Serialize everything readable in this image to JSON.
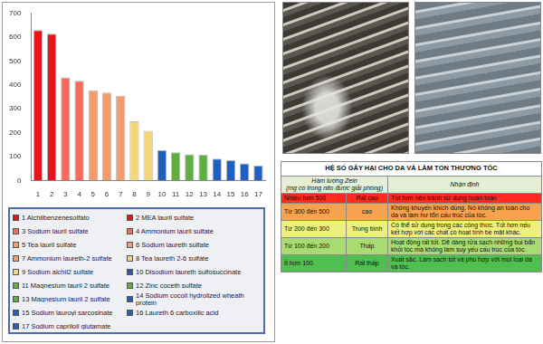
{
  "chart_data": {
    "type": "bar",
    "categories": [
      "1",
      "2",
      "3",
      "4",
      "5",
      "6",
      "7",
      "8",
      "9",
      "10",
      "11",
      "12",
      "13",
      "14",
      "15",
      "16",
      "17"
    ],
    "values": [
      630,
      615,
      432,
      418,
      378,
      368,
      355,
      248,
      208,
      128,
      118,
      110,
      108,
      92,
      85,
      72,
      63
    ],
    "colors": [
      "#e8141c",
      "#e8141c",
      "#f26b5b",
      "#f26b5b",
      "#f59a6a",
      "#f59a6a",
      "#f59a6a",
      "#f5d57a",
      "#f5d57a",
      "#1f5fbf",
      "#5fae3e",
      "#5fae3e",
      "#5fae3e",
      "#1f5fbf",
      "#1f5fbf",
      "#1f5fbf",
      "#1f5fbf"
    ],
    "category_names": [
      "1 Alchilbenzenesolfato",
      "2 MEA lauril sulfate",
      "3 Sodium lauril sulfate",
      "4 Ammonium lauril sulfate",
      "5 Tea lauril sulfate",
      "6 Sodium laureth sulfate",
      "7 Ammonium laureth-2 sulfate",
      "8 Tea laureth 2-6 sulfate",
      "9 Sodium alchil2 sulfate",
      "10 Disodium laureth sulfosuccinate",
      "11 Magnesium lauril 2 sulfate",
      "12 Zinc coceth sulfate",
      "13 Magnesium lauril 2 sulfate",
      "14 Sodium cocoil hydrolized wheath protein",
      "15 Sodium lauroyl sarcosinate",
      "16 Laureth 6 carboxilic acid",
      "17 Sodium capriloil glutamate"
    ],
    "ylim": [
      0,
      700
    ],
    "yticks": [
      0,
      100,
      200,
      300,
      400,
      500,
      600,
      700
    ],
    "grid": false
  },
  "table": {
    "title": "HỆ SỐ GÂY HẠI CHO DA VÀ LÀM TỔN THƯƠNG TÓC",
    "header": {
      "measure": [
        "Hàm lượng Zein",
        "(mg có trong nito được giải phóng)"
      ],
      "note": "Nhận định"
    },
    "rows": [
      [
        "Nhiều hơn 500",
        "Rất cao",
        "Tốt hơn nên tránh sử dụng hoàn toàn"
      ],
      [
        "Từ 300 đến 500",
        "cao",
        "Không khuyến khích dùng. Nó không an toàn cho da và làm hư tổn cấu trúc của tóc."
      ],
      [
        "Từ 200 đến 300",
        "Trung bình",
        "Có thể sử dụng trong các công thức. Tốt hơn nếu kết hợp với các chất có hoạt tính bề mặt khác."
      ],
      [
        "Từ 100 đến 200",
        "Thấp",
        "Hoạt động rất tốt. Dễ dàng rửa sạch những bụi bẩn khỏi tóc mà không làm suy yếu cấu trúc của tóc."
      ],
      [
        "Ít hơn 100",
        "Rất thấp",
        "Xuất sắc. Làm sạch tốt và phù hợp với mọi loại da và tóc."
      ]
    ]
  }
}
